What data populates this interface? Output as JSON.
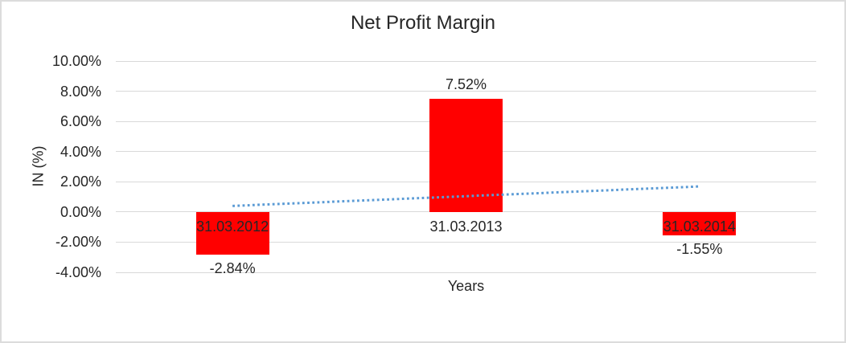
{
  "chart_data": {
    "type": "bar",
    "title": "Net Profit Margin",
    "xlabel": "Years",
    "ylabel": "IN (%)",
    "categories": [
      "31.03.2012",
      "31.03.2013",
      "31.03.2014"
    ],
    "series": [
      {
        "name": "Net Profit Margin",
        "values": [
          -2.84,
          7.52,
          -1.55
        ]
      }
    ],
    "value_labels": [
      "-2.84%",
      "7.52%",
      "-1.55%"
    ],
    "ylim": [
      -4,
      10
    ],
    "yticks": [
      {
        "value": 10,
        "label": "10.00%"
      },
      {
        "value": 8,
        "label": "8.00%"
      },
      {
        "value": 6,
        "label": "6.00%"
      },
      {
        "value": 4,
        "label": "4.00%"
      },
      {
        "value": 2,
        "label": "2.00%"
      },
      {
        "value": 0,
        "label": "0.00%"
      },
      {
        "value": -2,
        "label": "-2.00%"
      },
      {
        "value": -4,
        "label": "-4.00%"
      }
    ],
    "grid": true,
    "legend": "none",
    "bar_color": "#ff0000",
    "trendline": {
      "type": "linear",
      "style": "dotted",
      "color": "#5b9bd5",
      "start_value": 0.4,
      "end_value": 1.69
    }
  },
  "colors": {
    "bar": "#ff0000",
    "trendline": "#5b9bd5",
    "gridline": "#d9d9d9",
    "text": "#262626",
    "chart_border": "#dcdcdc",
    "background": "#ffffff"
  }
}
